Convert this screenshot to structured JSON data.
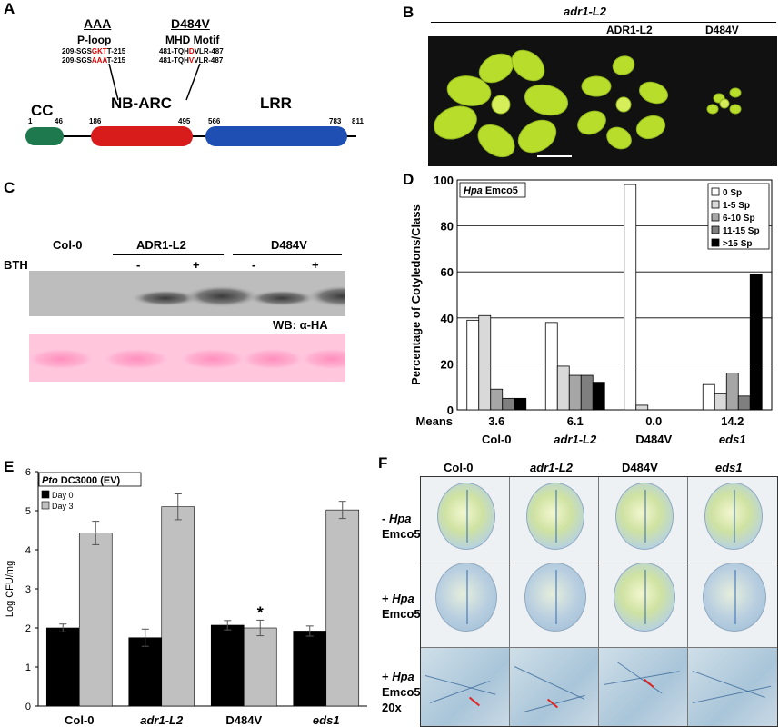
{
  "panels": {
    "A": {
      "letter": "A",
      "aaa": "AAA",
      "ploop": "P-loop",
      "ploop_seq1_pre": "209-SGS",
      "ploop_seq1_red": "GKT",
      "ploop_seq1_post": "T-215",
      "ploop_seq2_pre": "209-SGS",
      "ploop_seq2_red": "AAA",
      "ploop_seq2_post": "T-215",
      "mut": "D484V",
      "mhd": "MHD Motif",
      "mhd_seq1_pre": "481-TQH",
      "mhd_seq1_red": "D",
      "mhd_seq1_post": "VLR-487",
      "mhd_seq2_pre": "481-TQH",
      "mhd_seq2_red": "V",
      "mhd_seq2_post": "VLR-487",
      "domains": {
        "cc": "CC",
        "nbarc": "NB-ARC",
        "lrr": "LRR"
      },
      "positions": {
        "p1": "1",
        "p46": "46",
        "p186": "186",
        "p495": "495",
        "p566": "566",
        "p783": "783",
        "p811": "811"
      },
      "colors": {
        "cc": "#1e7a4e",
        "nbarc": "#d81b1b",
        "lrr": "#1f4fb3",
        "mutation": "#e00000"
      }
    },
    "B": {
      "letter": "B",
      "header": "adr1-L2",
      "label_adr1": "ADR1-L2",
      "label_d484v": "D484V"
    },
    "C": {
      "letter": "C",
      "col0": "Col-0",
      "adr1": "ADR1-L2",
      "d484v": "D484V",
      "bth": "BTH",
      "minus1": "-",
      "plus1": "+",
      "minus2": "-",
      "plus2": "+",
      "wb": "WB: α-HA"
    },
    "D": {
      "letter": "D",
      "title_italic": "Hpa",
      "title_rest": " Emco5",
      "ylabel": "Percentage of Cotyledons/Class",
      "means_label": "Means",
      "means": [
        "3.6",
        "6.1",
        "0.0",
        "14.2"
      ],
      "groups": [
        "Col-0",
        "adr1-L2",
        "D484V",
        "eds1"
      ],
      "yticks": [
        "0",
        "20",
        "40",
        "60",
        "80",
        "100"
      ],
      "legend": [
        "0 Sp",
        "1-5 Sp",
        "6-10 Sp",
        "11-15 Sp",
        ">15 Sp"
      ]
    },
    "E": {
      "letter": "E",
      "title_italic": "Pto",
      "title_rest": " DC3000 (EV)",
      "ylabel": "Log CFU/mg",
      "legend": [
        "Day 0",
        "Day 3"
      ],
      "groups": [
        "Col-0",
        "adr1-L2",
        "D484V",
        "eds1"
      ],
      "yticks": [
        "0",
        "1",
        "2",
        "3",
        "4",
        "5",
        "6"
      ],
      "star": "*"
    },
    "F": {
      "letter": "F",
      "cols": [
        "Col-0",
        "adr1-L2",
        "D484V",
        "eds1"
      ],
      "row1": {
        "sign": "- ",
        "hpa": "Hpa",
        "emco": "Emco5"
      },
      "row2": {
        "sign": "+ ",
        "hpa": "Hpa",
        "emco": "Emco5"
      },
      "row3": {
        "sign": "+ ",
        "hpa": "Hpa",
        "emco": "Emco5",
        "mag": "20x"
      }
    }
  },
  "chart_data": [
    {
      "type": "bar",
      "title": "Hpa Emco5",
      "xlabel": "",
      "ylabel": "Percentage of Cotyledons/Class",
      "categories": [
        "Col-0",
        "adr1-L2",
        "D484V",
        "eds1"
      ],
      "ylim": [
        0,
        100
      ],
      "grid": true,
      "legend_position": "top-right",
      "series": [
        {
          "name": "0 Sp",
          "values": [
            39,
            38,
            98,
            11
          ],
          "color": "#ffffff"
        },
        {
          "name": "1-5 Sp",
          "values": [
            41,
            19,
            2,
            7
          ],
          "color": "#d9d9d9"
        },
        {
          "name": "6-10 Sp",
          "values": [
            9,
            15,
            0,
            16
          ],
          "color": "#a6a6a6"
        },
        {
          "name": "11-15 Sp",
          "values": [
            5,
            15,
            0,
            6
          ],
          "color": "#7f7f7f"
        },
        {
          "name": ">15 Sp",
          "values": [
            5,
            12,
            0,
            59
          ],
          "color": "#000000"
        }
      ],
      "means": [
        3.6,
        6.1,
        0.0,
        14.2
      ]
    },
    {
      "type": "bar",
      "title": "Pto DC3000 (EV)",
      "xlabel": "",
      "ylabel": "Log CFU/mg",
      "categories": [
        "Col-0",
        "adr1-L2",
        "D484V",
        "eds1"
      ],
      "ylim": [
        0,
        6
      ],
      "grid": false,
      "legend_position": "top-left",
      "series": [
        {
          "name": "Day 0",
          "values": [
            2.0,
            1.75,
            2.07,
            1.92
          ],
          "errors": [
            0.1,
            0.22,
            0.12,
            0.13
          ],
          "color": "#000000"
        },
        {
          "name": "Day 3",
          "values": [
            4.43,
            5.1,
            2.0,
            5.02
          ],
          "errors": [
            0.3,
            0.33,
            0.2,
            0.22
          ],
          "color": "#c0c0c0"
        }
      ],
      "annotations": [
        {
          "text": "*",
          "category": "D484V",
          "series": "Day 3"
        }
      ]
    }
  ]
}
